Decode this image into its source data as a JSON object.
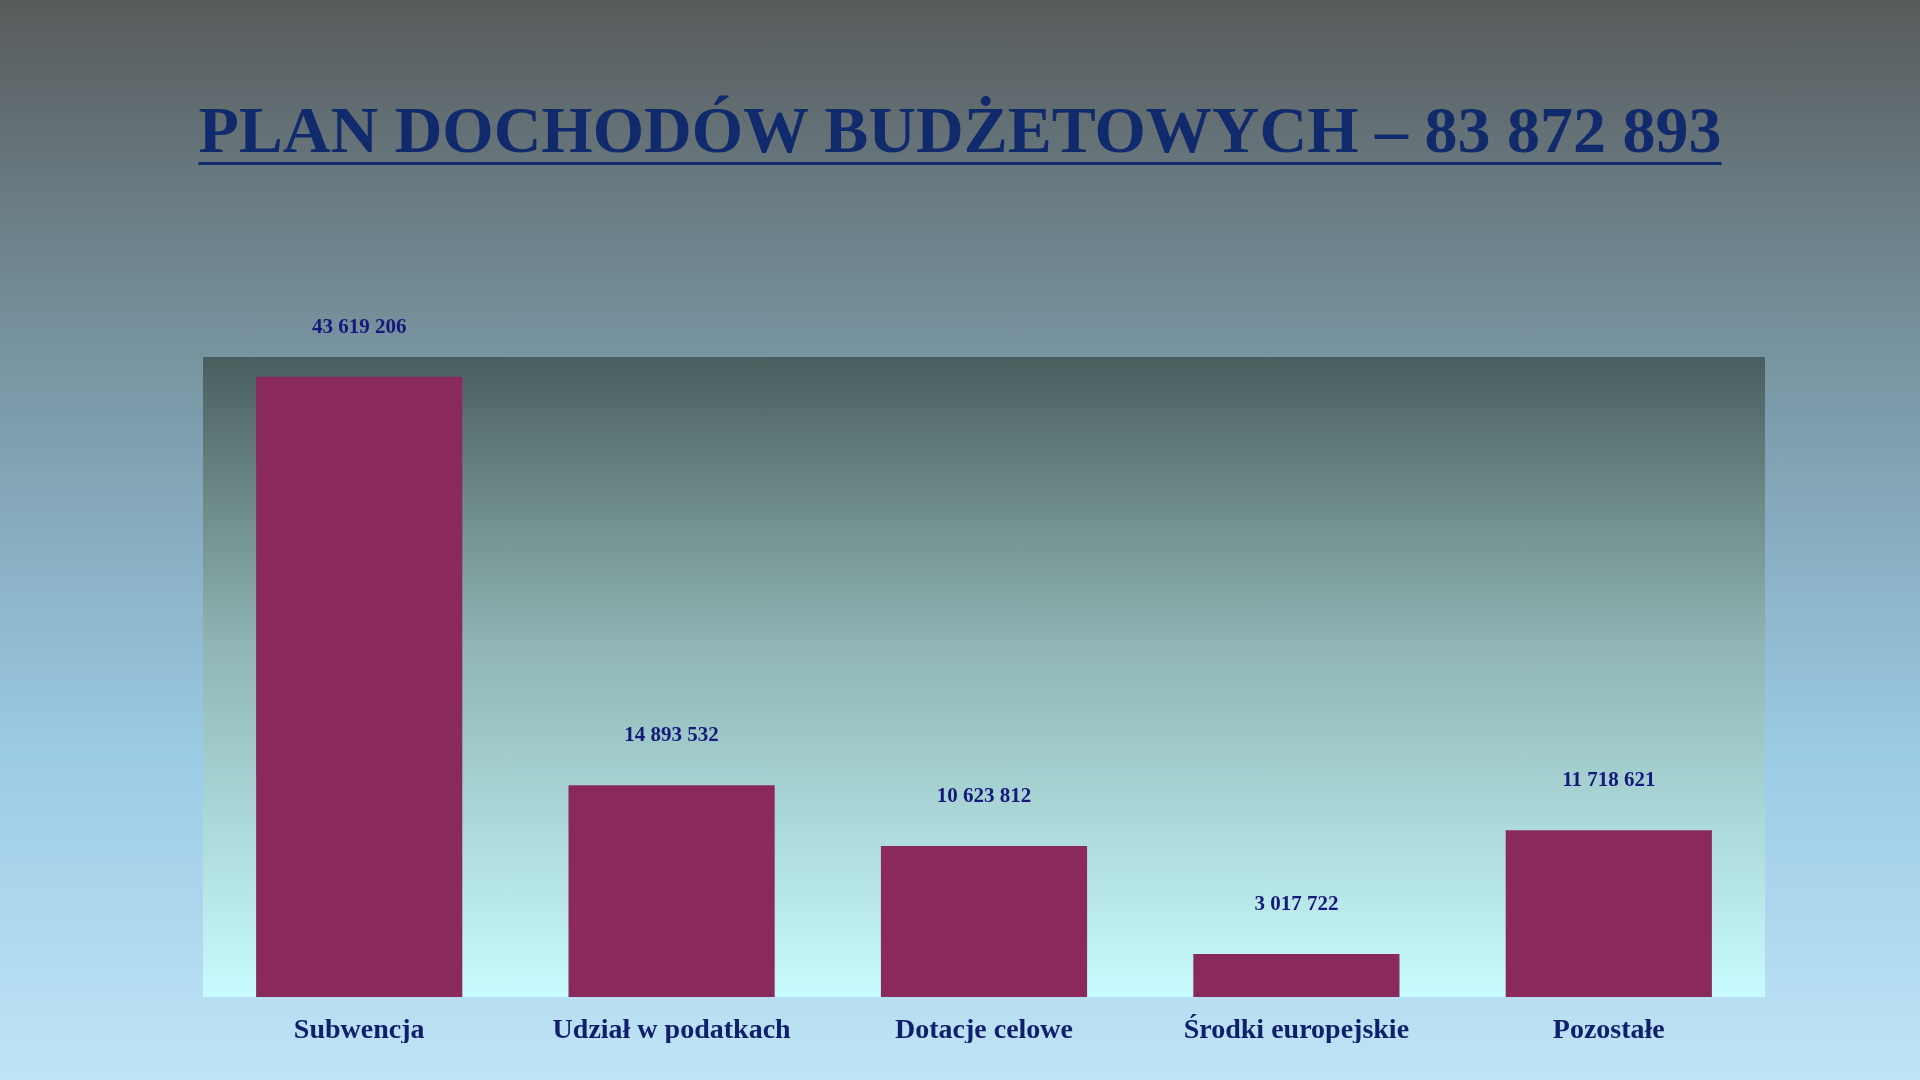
{
  "chart_data": {
    "type": "bar",
    "title": "PLAN DOCHODÓW BUDŻETOWYCH – 83 872 893",
    "categories": [
      "Subwencja",
      "Udział w podatkach",
      "Dotacje celowe",
      "Środki europejskie",
      "Pozostałe"
    ],
    "values": [
      43619206,
      14893532,
      10623812,
      3017722,
      11718621
    ],
    "value_labels": [
      "43 619 206",
      "14 893 532",
      "10 623 812",
      "3 017 722",
      "11 718 621"
    ],
    "color": "#8a2a5c"
  }
}
